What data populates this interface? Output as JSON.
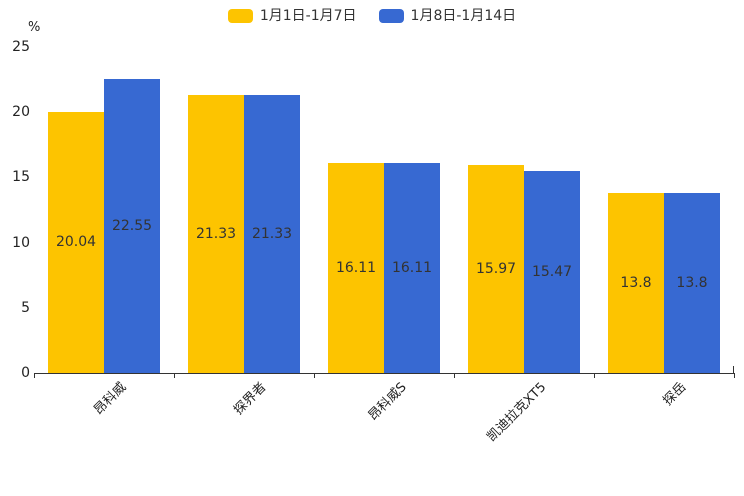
{
  "chart_data": {
    "type": "bar",
    "title": "",
    "categories": [
      "昂科威",
      "探界者",
      "昂科威S",
      "凯迪拉克XT5",
      "探岳"
    ],
    "series": [
      {
        "name": "1月1日-1月7日",
        "color": "#FDC400",
        "values": [
          20.04,
          21.33,
          16.11,
          15.97,
          13.8
        ]
      },
      {
        "name": "1月8日-1月14日",
        "color": "#3769D2",
        "values": [
          22.55,
          21.33,
          16.11,
          15.47,
          13.8
        ]
      }
    ],
    "xlabel": "",
    "ylabel": "%",
    "yticks": [
      0,
      5,
      10,
      15,
      20,
      25
    ],
    "ylim": [
      0,
      25
    ],
    "grid": false,
    "legend_position": "top-center",
    "value_labels": "inside-center",
    "value_label_color": "#333333",
    "axis_color": "#333333",
    "background_color": "#ffffff"
  }
}
